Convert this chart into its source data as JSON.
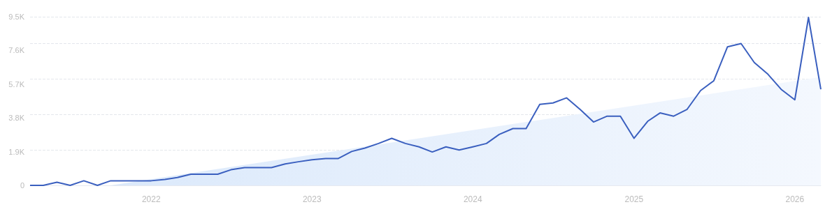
{
  "chart_data": {
    "type": "line",
    "xlim": [
      "2021-04",
      "2026-03"
    ],
    "xticks": [
      {
        "value": "2022",
        "label": "2022"
      },
      {
        "value": "2023",
        "label": "2023"
      },
      {
        "value": "2024",
        "label": "2024"
      },
      {
        "value": "2025",
        "label": "2025"
      },
      {
        "value": "2026",
        "label": "2026"
      }
    ],
    "ylim": [
      0,
      9500
    ],
    "yticks": [
      0,
      {
        "value": 1900,
        "label": "1.9K"
      },
      {
        "value": 3800,
        "label": "3.8K"
      },
      {
        "value": 5700,
        "label": "5.7K"
      },
      {
        "value": 7600,
        "label": "7.6K"
      },
      {
        "value": 9500,
        "label": "9.5K"
      }
    ],
    "grid": "y",
    "marker": "none",
    "line_style": "solid",
    "series": [
      {
        "type": "area",
        "color": "#dbe9fb",
        "x": [
          "2021-10",
          "2026-03"
        ],
        "values": [
          0,
          6100
        ]
      },
      {
        "color": "#3a5fbf",
        "x": [
          "2021-04",
          "2021-05",
          "2021-06",
          "2021-07",
          "2021-08",
          "2021-09",
          "2021-10",
          "2021-11",
          "2021-12",
          "2022-01",
          "2022-02",
          "2022-03",
          "2022-04",
          "2022-05",
          "2022-06",
          "2022-07",
          "2022-08",
          "2022-09",
          "2022-10",
          "2022-11",
          "2022-12",
          "2023-01",
          "2023-02",
          "2023-03",
          "2023-04",
          "2023-05",
          "2023-06",
          "2023-07",
          "2023-08",
          "2023-09",
          "2023-10",
          "2023-11",
          "2023-12",
          "2024-01",
          "2024-02",
          "2024-03",
          "2024-04",
          "2024-05",
          "2024-06",
          "2024-07",
          "2024-08",
          "2024-09",
          "2024-10",
          "2024-11",
          "2024-12",
          "2025-01",
          "2025-02",
          "2025-03",
          "2025-04",
          "2025-05",
          "2025-06",
          "2025-07",
          "2025-08",
          "2025-09",
          "2025-10",
          "2025-11",
          "2025-12",
          "2026-01",
          "2026-02",
          "2026-03"
        ],
        "values": [
          0,
          0,
          180,
          0,
          260,
          0,
          260,
          260,
          260,
          260,
          330,
          440,
          630,
          630,
          630,
          880,
          1000,
          1000,
          1000,
          1210,
          1330,
          1440,
          1510,
          1510,
          1910,
          2100,
          2360,
          2650,
          2360,
          2170,
          1880,
          2170,
          1990,
          2170,
          2360,
          2870,
          3200,
          3200,
          4560,
          4640,
          4930,
          4270,
          3570,
          3900,
          3900,
          2650,
          3610,
          4080,
          3900,
          4270,
          5340,
          5890,
          7800,
          7990,
          6920,
          6260,
          5410,
          4820,
          9460,
          5410
        ]
      }
    ]
  }
}
